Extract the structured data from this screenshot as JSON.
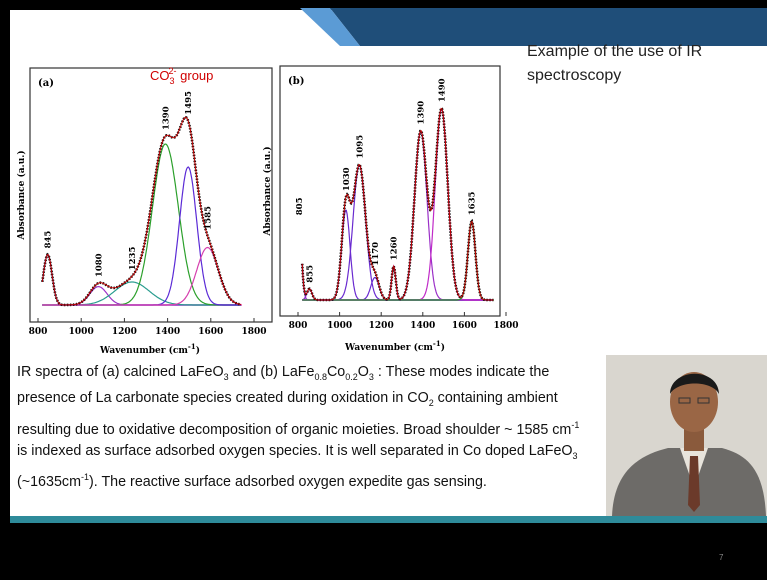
{
  "heading": "Example of the use of IR spectroscopy",
  "figures": [
    {
      "panel": "(a)",
      "y_label": "Absorbance (a.u.)",
      "x_label": [
        "Wavenumber (cm",
        "-1",
        ")"
      ],
      "annotation": [
        "CO",
        "3",
        "2-",
        " group"
      ],
      "annotation_color": "#d00000",
      "xlim": [
        800,
        1800
      ],
      "xticks": [
        800,
        1000,
        1200,
        1400,
        1600,
        1800
      ],
      "baseline_color": "#e0309a",
      "envelope_color": "#c00000",
      "peaks": [
        {
          "center": 845,
          "height": 0.22,
          "width": 20,
          "color": "#1f3fcf"
        },
        {
          "center": 1080,
          "height": 0.08,
          "width": 40,
          "color": "#9b30c8"
        },
        {
          "center": 1235,
          "height": 0.1,
          "width": 80,
          "color": "#2a9d8f"
        },
        {
          "center": 1390,
          "height": 0.7,
          "width": 60,
          "color": "#2ca02c"
        },
        {
          "center": 1495,
          "height": 0.6,
          "width": 40,
          "color": "#5b2bd6"
        },
        {
          "center": 1585,
          "height": 0.25,
          "width": 50,
          "color": "#d63fae"
        }
      ]
    },
    {
      "panel": "(b)",
      "y_label": "Absorbance (a.u.)",
      "x_label": [
        "Wavenumber (cm",
        "-1",
        ")"
      ],
      "xlim": [
        800,
        1800
      ],
      "xticks": [
        800,
        1000,
        1200,
        1400,
        1600,
        1800
      ],
      "baseline_color": "#2ca02c",
      "envelope_color": "#c00000",
      "peaks": [
        {
          "center": 805,
          "height": 0.35,
          "width": 12,
          "color": "#8b2bc8"
        },
        {
          "center": 855,
          "height": 0.05,
          "width": 12,
          "color": "#8b2bc8"
        },
        {
          "center": 1030,
          "height": 0.4,
          "width": 20,
          "color": "#6a2bd0"
        },
        {
          "center": 1095,
          "height": 0.6,
          "width": 30,
          "color": "#6a2bd0"
        },
        {
          "center": 1170,
          "height": 0.1,
          "width": 20,
          "color": "#6a2bd0"
        },
        {
          "center": 1260,
          "height": 0.15,
          "width": 10,
          "color": "#c02bc8"
        },
        {
          "center": 1390,
          "height": 0.75,
          "width": 30,
          "color": "#9b30c8"
        },
        {
          "center": 1490,
          "height": 0.85,
          "width": 30,
          "color": "#c02bc8"
        },
        {
          "center": 1635,
          "height": 0.35,
          "width": 18,
          "color": "#2ca02c"
        }
      ]
    }
  ],
  "caption": [
    [
      "IR spectra of (a) calcined LaFeO",
      "3",
      " and (b) LaFe",
      "0.8",
      "Co",
      "0.2",
      "O",
      "3",
      " : These modes indicate the"
    ],
    [
      "presence of La carbonate species created during oxidation in CO",
      "2",
      " containing ambient"
    ],
    [
      "resulting due to oxidative decomposition of organic moieties. Broad shoulder ~ 1585 cm",
      "-1"
    ],
    [
      "is indexed as surface adsorbed oxygen species. It is well separated in Co doped LaFeO",
      "3"
    ],
    [
      "(~1635cm",
      "-1",
      "). The reactive surface adsorbed oxygen expedite gas sensing."
    ]
  ],
  "page_number": "7"
}
